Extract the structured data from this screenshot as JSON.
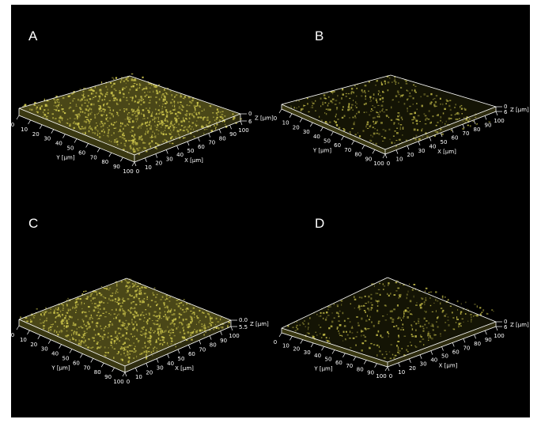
{
  "figure": {
    "background": "#000000",
    "surface_color": "#c9c24a",
    "axis_color": "#ffffff",
    "panels": [
      {
        "id": "A",
        "label": "A",
        "coverage": "dense",
        "y_axis": {
          "ticks": [
            "0",
            "10",
            "20",
            "30",
            "40",
            "50",
            "60",
            "70",
            "80",
            "90",
            "100"
          ],
          "label": "Y [µm]"
        },
        "x_axis": {
          "ticks": [
            "0",
            "10",
            "20",
            "30",
            "40",
            "50",
            "60",
            "70",
            "80",
            "90",
            "100"
          ],
          "label": "X [µm]"
        },
        "z_axis": {
          "top": "0",
          "bottom": "6",
          "label": "Z [µm]"
        }
      },
      {
        "id": "B",
        "label": "B",
        "coverage": "sparse",
        "y_axis": {
          "ticks": [
            "0",
            "10",
            "20",
            "30",
            "40",
            "50",
            "60",
            "70",
            "80",
            "90",
            "100"
          ],
          "label": "Y [µm]"
        },
        "x_axis": {
          "ticks": [
            "0",
            "10",
            "20",
            "30",
            "40",
            "50",
            "60",
            "70",
            "80",
            "90",
            "100"
          ],
          "label": "X [µm]"
        },
        "z_axis": {
          "top": "0",
          "bottom": "6",
          "label": "Z [µm]"
        }
      },
      {
        "id": "C",
        "label": "C",
        "coverage": "dense",
        "y_axis": {
          "ticks": [
            "0",
            "10",
            "20",
            "30",
            "40",
            "50",
            "60",
            "70",
            "80",
            "90",
            "100"
          ],
          "label": "Y [µm]"
        },
        "x_axis": {
          "ticks": [
            "0",
            "10",
            "20",
            "30",
            "40",
            "50",
            "60",
            "70",
            "80",
            "90",
            "100"
          ],
          "label": "X [µm]"
        },
        "z_axis": {
          "top": "0.0",
          "bottom": "5.5",
          "label": "Z [µm]"
        }
      },
      {
        "id": "D",
        "label": "D",
        "coverage": "sparse",
        "y_axis": {
          "ticks": [
            "0",
            "10",
            "20",
            "30",
            "40",
            "50",
            "60",
            "70",
            "80",
            "90",
            "100"
          ],
          "label": "Y [µm]"
        },
        "x_axis": {
          "ticks": [
            "0",
            "10",
            "20",
            "30",
            "40",
            "50",
            "60",
            "70",
            "80",
            "90",
            "100"
          ],
          "label": "X [µm]"
        },
        "z_axis": {
          "top": "0",
          "bottom": "6",
          "label": "Z [µm]"
        }
      }
    ]
  }
}
